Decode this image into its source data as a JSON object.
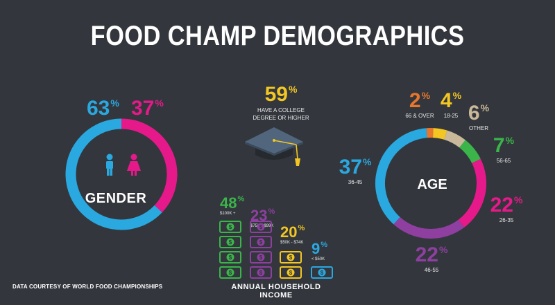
{
  "title": "FOOD CHAMP DEMOGRAPHICS",
  "source": "DATA COURTESY OF WORLD FOOD CHAMPIONSHIPS",
  "colors": {
    "background": "#33373d",
    "blue": "#2aa8e0",
    "pink": "#e6198a",
    "yellow": "#f3c623",
    "green": "#3bb54a",
    "purple": "#8e3fa0",
    "orange": "#e8762d",
    "tan": "#c9b99a"
  },
  "chart_data": [
    {
      "type": "pie",
      "title": "GENDER",
      "slices": [
        {
          "name": "male",
          "value": 63,
          "label": "63",
          "color": "#2aa8e0",
          "icon": "male-icon"
        },
        {
          "name": "female",
          "value": 37,
          "label": "37",
          "color": "#e6198a",
          "icon": "female-icon"
        }
      ]
    },
    {
      "type": "table",
      "title": "",
      "value": 59,
      "label": "59",
      "caption": "HAVE A COLLEGE DEGREE OR HIGHER",
      "icon": "graduation-cap-icon"
    },
    {
      "type": "pie",
      "title": "AGE",
      "slices": [
        {
          "name": "66 & OVER",
          "value": 2,
          "label": "2",
          "color": "#e8762d"
        },
        {
          "name": "18-25",
          "value": 4,
          "label": "4",
          "color": "#f3c623"
        },
        {
          "name": "OTHER",
          "value": 6,
          "label": "6",
          "color": "#c9b99a"
        },
        {
          "name": "56-65",
          "value": 7,
          "label": "7",
          "color": "#3bb54a"
        },
        {
          "name": "26-35",
          "value": 22,
          "label": "22",
          "color": "#e6198a"
        },
        {
          "name": "46-55",
          "value": 22,
          "label": "22",
          "color": "#8e3fa0"
        },
        {
          "name": "36-45",
          "value": 37,
          "label": "37",
          "color": "#2aa8e0"
        }
      ]
    },
    {
      "type": "bar",
      "title": "ANNUAL HOUSEHOLD INCOME",
      "categories": [
        "$100K +",
        "$75K - $99K",
        "$50K - $74K",
        "< $50K"
      ],
      "values": [
        48,
        23,
        20,
        9
      ],
      "labels": [
        "48",
        "23",
        "20",
        "9"
      ],
      "icon_counts": [
        4,
        4,
        2,
        1
      ],
      "colors": [
        "#3bb54a",
        "#8e3fa0",
        "#f3c623",
        "#2aa8e0"
      ]
    }
  ],
  "percent_sign": "%",
  "dollar_sign": "$"
}
